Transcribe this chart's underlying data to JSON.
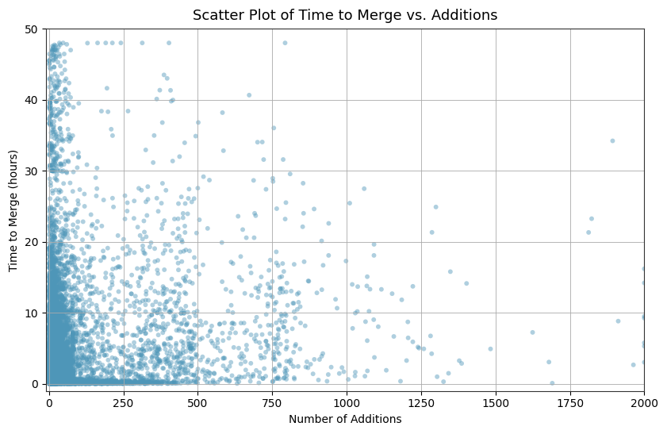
{
  "title": "Scatter Plot of Time to Merge vs. Additions",
  "xlabel": "Number of Additions",
  "ylabel": "Time to Merge (hours)",
  "xlim": [
    -10,
    2000
  ],
  "ylim": [
    -1,
    50
  ],
  "yticks": [
    0,
    10,
    20,
    30,
    40,
    50
  ],
  "xticks": [
    0,
    250,
    500,
    750,
    1000,
    1250,
    1500,
    1750,
    2000
  ],
  "dot_color": "#4e96b8",
  "dot_alpha": 0.45,
  "dot_size": 18,
  "background_color": "#ffffff",
  "grid_color": "#aaaaaa",
  "title_fontsize": 13,
  "label_fontsize": 10,
  "figsize": [
    8.41,
    5.47
  ],
  "dpi": 100,
  "seed": 42
}
